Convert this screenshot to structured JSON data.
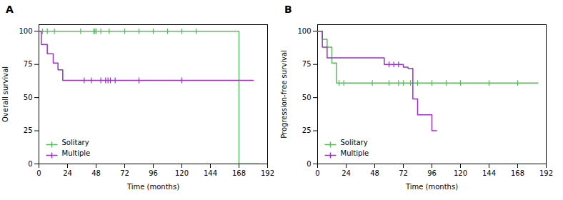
{
  "chart_data": [
    {
      "type": "step",
      "title": "A",
      "xlabel": "Time (months)",
      "ylabel": "Overall survival",
      "xlim": [
        0,
        192
      ],
      "ylim": [
        0,
        105
      ],
      "xticks": [
        0,
        24,
        48,
        72,
        96,
        120,
        144,
        168,
        192
      ],
      "yticks": [
        0,
        25,
        50,
        75,
        100
      ],
      "legend": "lower left",
      "series": [
        {
          "name": "Solitary",
          "color": "#5cb85c",
          "x": [
            0,
            168,
            168,
            185
          ],
          "values": [
            100,
            100,
            0,
            0
          ],
          "censor_x": [
            3,
            7,
            13,
            35,
            46,
            47,
            48,
            52,
            59,
            72,
            84,
            96,
            108,
            120,
            132
          ],
          "censor_y": [
            100,
            100,
            100,
            100,
            100,
            100,
            100,
            100,
            100,
            100,
            100,
            100,
            100,
            100,
            100
          ]
        },
        {
          "name": "Multiple",
          "color": "#9b30d0",
          "x": [
            0,
            2,
            7,
            12,
            16,
            20,
            35,
            180
          ],
          "values": [
            100,
            90,
            83,
            76,
            71,
            63,
            63,
            63
          ],
          "censor_x": [
            38,
            44,
            52,
            56,
            58,
            60,
            64,
            84,
            120
          ],
          "censor_y": [
            63,
            63,
            63,
            63,
            63,
            63,
            63,
            63,
            63
          ]
        }
      ]
    },
    {
      "type": "step",
      "title": "B",
      "xlabel": "Time (months)",
      "ylabel": "Progression-free survival",
      "xlim": [
        0,
        192
      ],
      "ylim": [
        0,
        105
      ],
      "xticks": [
        0,
        24,
        48,
        72,
        96,
        120,
        144,
        168,
        192
      ],
      "yticks": [
        0,
        25,
        50,
        75,
        100
      ],
      "legend": "lower left",
      "series": [
        {
          "name": "Solitary",
          "color": "#5cb85c",
          "x": [
            0,
            4,
            8,
            12,
            16,
            185
          ],
          "values": [
            100,
            94,
            88,
            76,
            61,
            61
          ],
          "censor_x": [
            18,
            22,
            46,
            60,
            68,
            72,
            78,
            84,
            96,
            108,
            120,
            144,
            168
          ],
          "censor_y": [
            61,
            61,
            61,
            61,
            61,
            61,
            61,
            61,
            61,
            61,
            61,
            61,
            61
          ]
        },
        {
          "name": "Multiple",
          "color": "#9b30d0",
          "x": [
            0,
            4,
            8,
            56,
            72,
            76,
            80,
            84,
            96,
            100
          ],
          "values": [
            100,
            88,
            80,
            75,
            73,
            72,
            49,
            37,
            25,
            25
          ],
          "censor_x": [
            60,
            64,
            68
          ],
          "censor_y": [
            75,
            75,
            75
          ]
        }
      ]
    }
  ]
}
